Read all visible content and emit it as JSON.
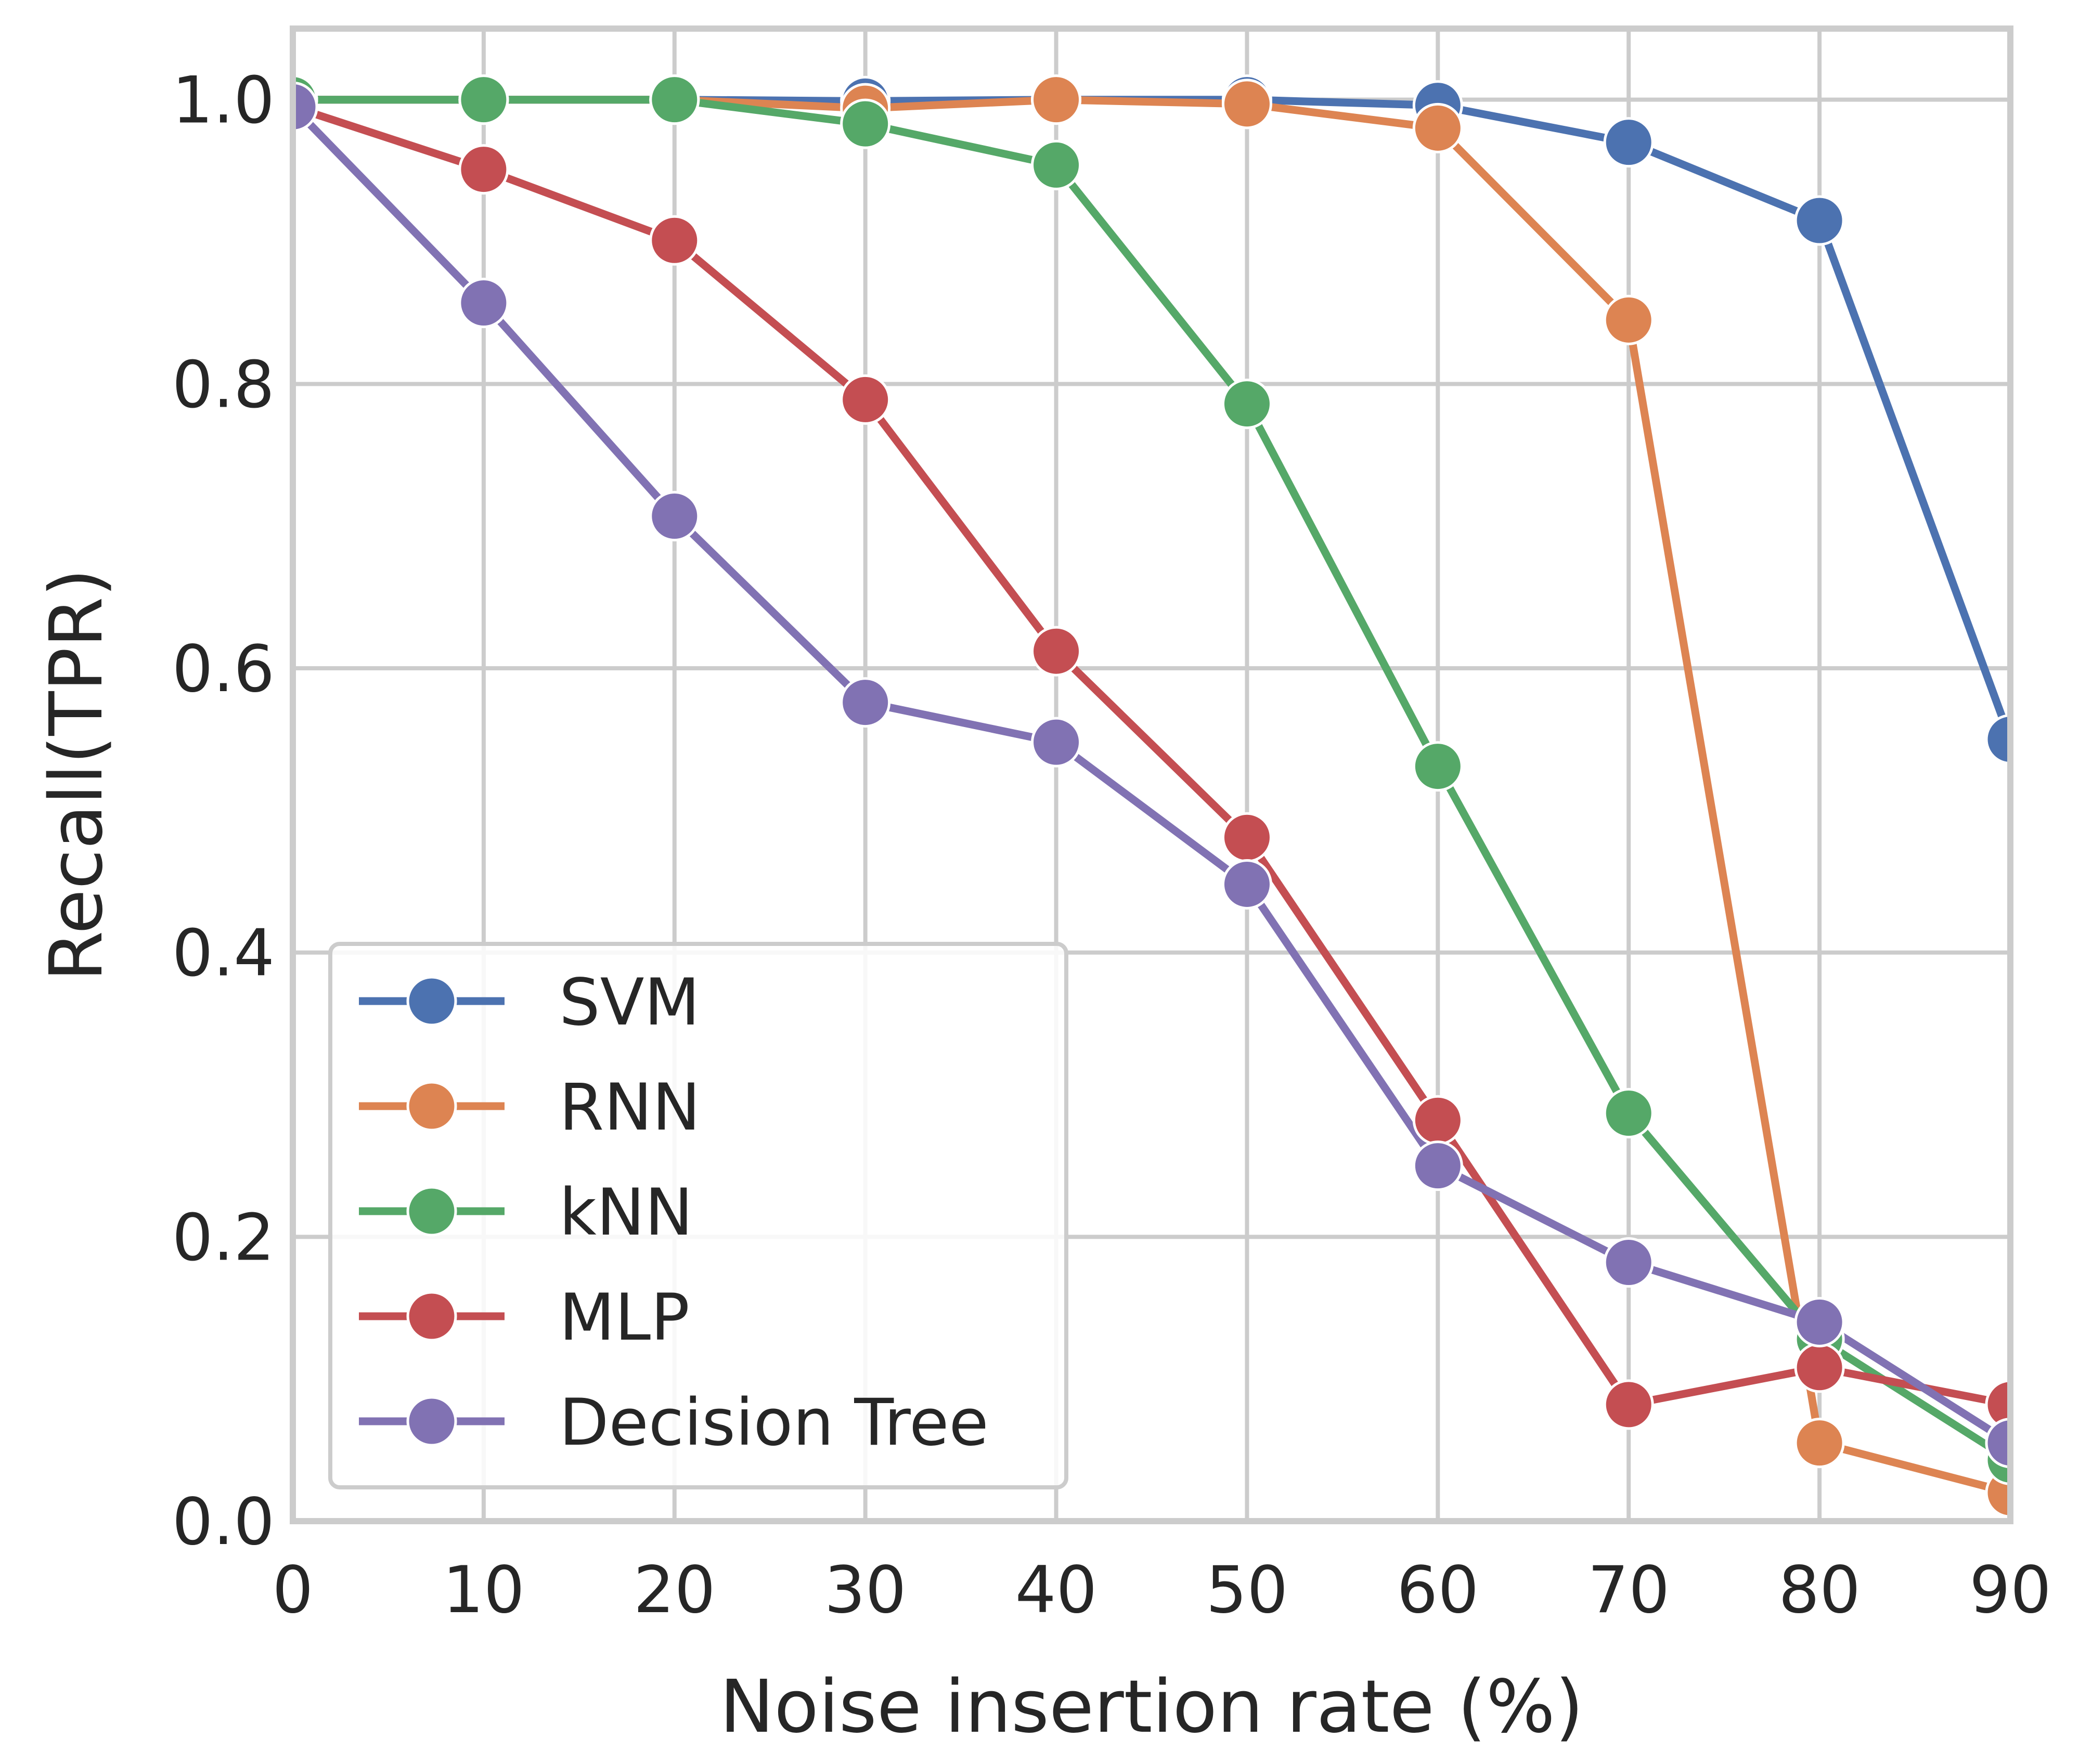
{
  "chart_data": {
    "type": "line",
    "xlabel": "Noise insertion rate (%)",
    "ylabel": "Recall(TPR)",
    "xlim": [
      0,
      90
    ],
    "ylim": [
      0,
      1.05
    ],
    "x_ticks": [
      "0",
      "10",
      "20",
      "30",
      "40",
      "50",
      "60",
      "70",
      "80",
      "90"
    ],
    "y_ticks": [
      "0.0",
      "0.2",
      "0.4",
      "0.6",
      "0.8",
      "1.0"
    ],
    "grid": true,
    "legend_position": "lower-left",
    "x": [
      0,
      10,
      20,
      30,
      40,
      50,
      60,
      70,
      80,
      90
    ],
    "series": [
      {
        "name": "SVM",
        "color": "#4c72b0",
        "values": [
          1.0,
          1.0,
          1.0,
          0.999,
          1.0,
          1.0,
          0.996,
          0.97,
          0.915,
          0.55
        ]
      },
      {
        "name": "RNN",
        "color": "#dd8452",
        "values": [
          1.0,
          1.0,
          1.0,
          0.994,
          1.0,
          0.997,
          0.98,
          0.845,
          0.055,
          0.02
        ]
      },
      {
        "name": "kNN",
        "color": "#55a868",
        "values": [
          1.0,
          1.0,
          1.0,
          0.983,
          0.954,
          0.786,
          0.531,
          0.287,
          0.128,
          0.043
        ]
      },
      {
        "name": "MLP",
        "color": "#c44e52",
        "values": [
          0.995,
          0.951,
          0.901,
          0.789,
          0.612,
          0.481,
          0.282,
          0.082,
          0.108,
          0.082
        ]
      },
      {
        "name": "Decision Tree",
        "color": "#8172b3",
        "values": [
          0.995,
          0.857,
          0.707,
          0.576,
          0.548,
          0.448,
          0.25,
          0.182,
          0.14,
          0.055
        ]
      }
    ]
  }
}
